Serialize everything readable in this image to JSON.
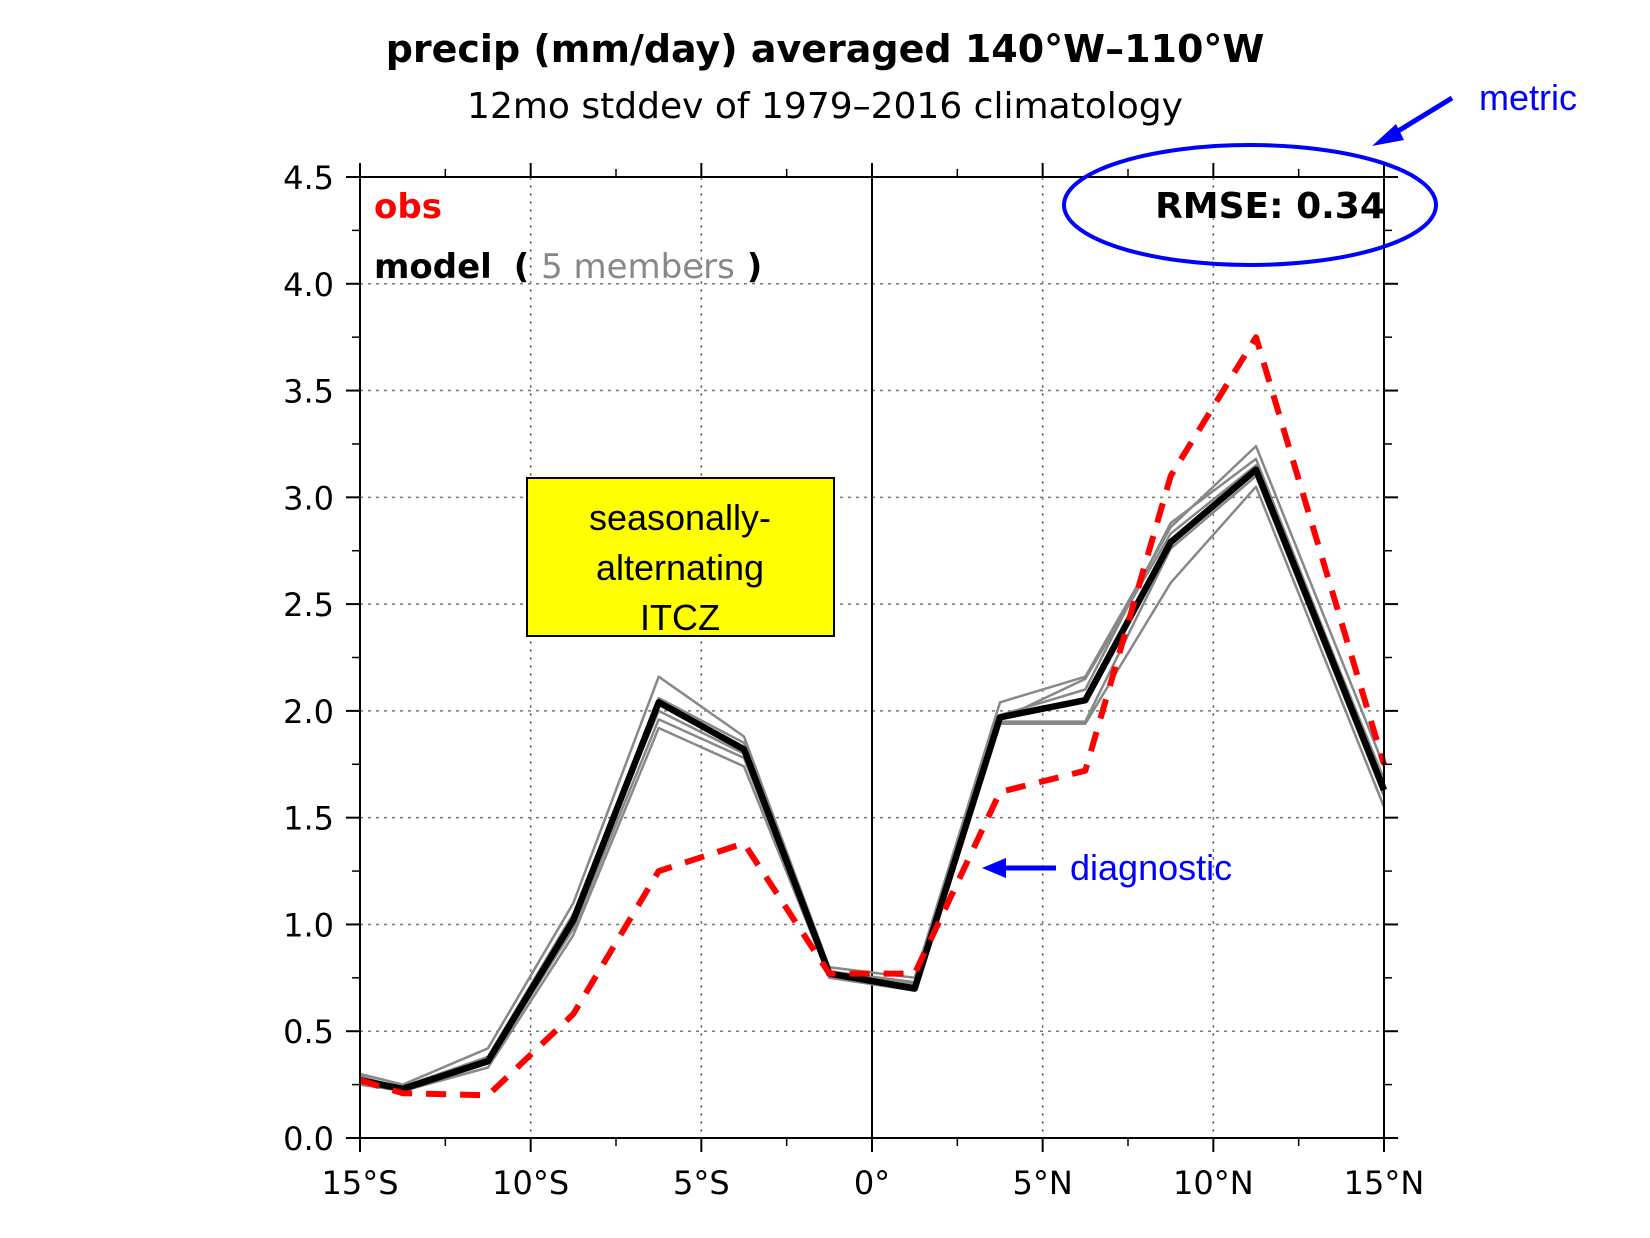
{
  "chart_data": {
    "type": "line",
    "title": "precip (mm/day) averaged 140°W–110°W",
    "subtitle": "12mo stddev of 1979–2016 climatology",
    "xlabel": "",
    "ylabel": "",
    "xlim": [
      -15,
      15
    ],
    "ylim": [
      0,
      4.5
    ],
    "x_ticks": [
      -15,
      -10,
      -5,
      0,
      5,
      10,
      15
    ],
    "x_tick_labels": [
      "15°S",
      "10°S",
      "5°S",
      "0°",
      "5°N",
      "10°N",
      "15°N"
    ],
    "y_ticks": [
      0,
      0.5,
      1,
      1.5,
      2,
      2.5,
      3,
      3.5,
      4,
      4.5
    ],
    "y_tick_labels": [
      "0.0",
      "0.5",
      "1.0",
      "1.5",
      "2.0",
      "2.5",
      "3.0",
      "3.5",
      "4.0",
      "4.5"
    ],
    "grid": true,
    "x": [
      -15,
      -13.75,
      -11.25,
      -8.75,
      -6.25,
      -3.75,
      -1.25,
      1.25,
      3.75,
      6.25,
      8.75,
      11.25,
      15
    ],
    "series": [
      {
        "key": "obs",
        "color": "#ff0000",
        "dash": true,
        "values": [
          0.27,
          0.21,
          0.2,
          0.58,
          1.25,
          1.38,
          0.77,
          0.77,
          1.62,
          1.72,
          3.1,
          3.75,
          1.75
        ]
      },
      {
        "key": "model",
        "color": "#000000",
        "values": [
          0.27,
          0.23,
          0.36,
          1.02,
          2.04,
          1.82,
          0.77,
          0.7,
          1.97,
          2.05,
          2.79,
          3.13,
          1.63
        ]
      },
      {
        "key": "member",
        "color": "#888888",
        "values": [
          0.3,
          0.25,
          0.42,
          1.1,
          2.16,
          1.88,
          0.8,
          0.75,
          2.04,
          2.16,
          2.86,
          3.24,
          1.74
        ]
      },
      {
        "key": "member",
        "color": "#888888",
        "values": [
          0.25,
          0.22,
          0.33,
          0.95,
          1.92,
          1.74,
          0.75,
          0.69,
          1.94,
          1.94,
          2.6,
          3.05,
          1.55
        ]
      },
      {
        "key": "member",
        "color": "#888888",
        "values": [
          0.28,
          0.24,
          0.38,
          1.05,
          2.0,
          1.8,
          0.78,
          0.73,
          1.96,
          2.15,
          2.83,
          3.15,
          1.68
        ]
      },
      {
        "key": "member",
        "color": "#888888",
        "values": [
          0.26,
          0.22,
          0.35,
          0.98,
          1.96,
          1.78,
          0.76,
          0.71,
          1.95,
          1.95,
          2.76,
          3.1,
          1.6
        ]
      },
      {
        "key": "member",
        "color": "#888888",
        "values": [
          0.29,
          0.23,
          0.37,
          1.03,
          2.06,
          1.85,
          0.77,
          0.72,
          1.98,
          2.1,
          2.88,
          3.18,
          1.66
        ]
      }
    ]
  },
  "legend": {
    "obs": "obs",
    "model": "model",
    "open_paren": "(",
    "members": "5 members",
    "close_paren": ")",
    "colors": {
      "obs": "#ff0000",
      "model": "#000000",
      "members": "#888888"
    }
  },
  "metric_box": {
    "text": "RMSE: 0.34"
  },
  "annotations": {
    "itcz_box": {
      "lines": [
        "seasonally-",
        "alternating",
        "ITCZ"
      ],
      "fill": "#ffff00"
    },
    "metric_label": "metric",
    "diagnostic_label": "diagnostic",
    "callout_color": "#0000ff"
  }
}
